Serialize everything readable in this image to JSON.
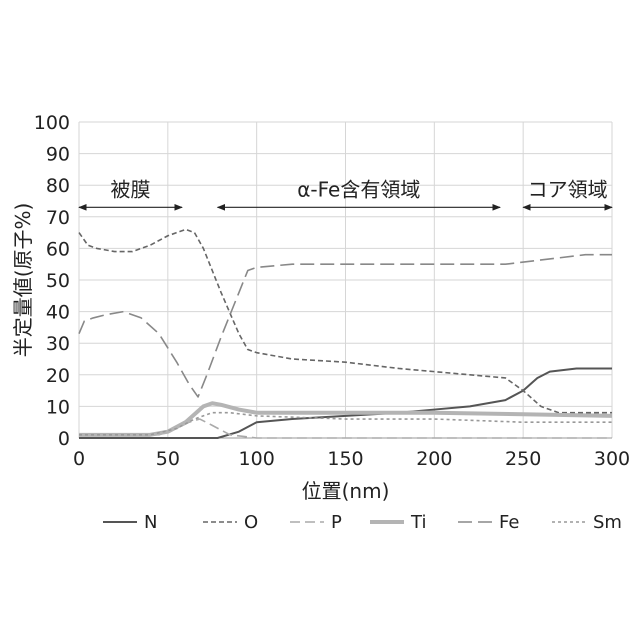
{
  "chart_data": {
    "type": "line",
    "title": "",
    "xlabel": "位置(nm)",
    "ylabel": "半定量値(原子%)",
    "xlim": [
      0,
      300
    ],
    "ylim": [
      0,
      100
    ],
    "x_ticks": [
      0,
      50,
      100,
      150,
      200,
      250,
      300
    ],
    "y_ticks": [
      0,
      10,
      20,
      30,
      40,
      50,
      60,
      70,
      80,
      90,
      100
    ],
    "grid": "vertical and horizontal, light gray",
    "legend_position": "bottom",
    "regions": [
      {
        "label": "被膜",
        "x_start": 0,
        "x_end": 58,
        "y": 73
      },
      {
        "label": "α-Fe含有領域",
        "x_start": 78,
        "x_end": 237,
        "y": 73
      },
      {
        "label": "コア領域",
        "x_start": 250,
        "x_end": 300,
        "y": 73
      }
    ],
    "series": [
      {
        "name": "N",
        "color": "#555555",
        "dash": "solid",
        "width": 2,
        "x": [
          0,
          60,
          78,
          90,
          100,
          120,
          150,
          180,
          200,
          220,
          240,
          250,
          258,
          265,
          280,
          300
        ],
        "y": [
          0,
          0,
          0,
          2,
          5,
          6,
          7,
          8,
          9,
          10,
          12,
          15,
          19,
          21,
          22,
          22
        ]
      },
      {
        "name": "O",
        "color": "#666666",
        "dash": "5,3",
        "width": 1.6,
        "x": [
          0,
          5,
          10,
          20,
          30,
          40,
          50,
          60,
          65,
          70,
          80,
          90,
          95,
          100,
          120,
          150,
          180,
          200,
          220,
          240,
          250,
          260,
          270,
          280,
          300
        ],
        "y": [
          65,
          61,
          60,
          59,
          59,
          61,
          64,
          66,
          65,
          60,
          46,
          33,
          28,
          27,
          25,
          24,
          22,
          21,
          20,
          19,
          15,
          10,
          8,
          8,
          8
        ]
      },
      {
        "name": "P",
        "color": "#aaaaaa",
        "dash": "10,5",
        "width": 1.6,
        "x": [
          0,
          30,
          45,
          55,
          62,
          68,
          75,
          85,
          100,
          300
        ],
        "y": [
          1,
          1,
          1,
          3,
          5,
          6,
          4,
          1,
          0,
          0
        ]
      },
      {
        "name": "Ti",
        "color": "#b4b4b4",
        "dash": "solid",
        "width": 4,
        "x": [
          0,
          40,
          50,
          60,
          70,
          75,
          80,
          90,
          100,
          150,
          200,
          250,
          300
        ],
        "y": [
          1,
          1,
          2,
          5,
          10,
          11,
          10.5,
          9,
          8,
          8,
          8,
          7.5,
          7
        ]
      },
      {
        "name": "Fe",
        "color": "#888888",
        "dash": "14,6",
        "width": 1.6,
        "x": [
          0,
          3,
          8,
          15,
          25,
          35,
          45,
          55,
          62,
          67,
          72,
          80,
          90,
          95,
          100,
          120,
          150,
          180,
          200,
          220,
          240,
          255,
          270,
          285,
          300
        ],
        "y": [
          33,
          37,
          38,
          39,
          40,
          38,
          33,
          24,
          17,
          13,
          20,
          32,
          46,
          53,
          54,
          55,
          55,
          55,
          55,
          55,
          55,
          56,
          57,
          58,
          58
        ]
      },
      {
        "name": "Sm",
        "color": "#999999",
        "dash": "3,3",
        "width": 1.6,
        "x": [
          0,
          40,
          55,
          65,
          75,
          85,
          100,
          150,
          200,
          250,
          300
        ],
        "y": [
          1,
          1,
          3,
          6,
          8,
          8,
          7,
          6,
          6,
          5,
          5
        ]
      }
    ]
  }
}
